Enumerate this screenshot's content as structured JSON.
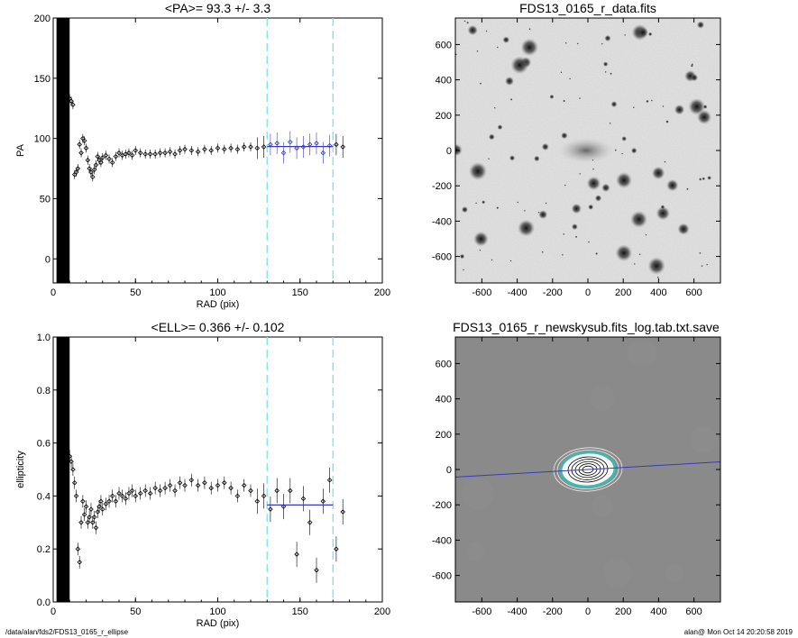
{
  "footer": {
    "path": "/data/alan/fds2/FDS13_0165_r_ellipse",
    "user_time": "alan@  Mon Oct 14 20:20:58 2019"
  },
  "colors": {
    "fit_line": "#3838c0",
    "cut_line": "#7fe0f0",
    "points": "#000000"
  },
  "chart_data": [
    {
      "type": "scatter",
      "title": "<PA>=  93.3 +/-   3.3",
      "xlabel": "RAD (pix)",
      "ylabel": "PA",
      "xlim": [
        0,
        200
      ],
      "ylim": [
        -20,
        200
      ],
      "xticks": [
        0,
        50,
        100,
        150,
        200
      ],
      "yticks": [
        0,
        50,
        100,
        150,
        200
      ],
      "vlines": [
        130,
        170
      ],
      "fit": {
        "x": [
          130,
          170
        ],
        "y": 93.3
      },
      "x": [
        10,
        11,
        12,
        13,
        14,
        15,
        16,
        17,
        18,
        19,
        20,
        21,
        22,
        23,
        24,
        25,
        26,
        27,
        28,
        29,
        30,
        32,
        34,
        36,
        38,
        40,
        42,
        44,
        46,
        48,
        50,
        53,
        56,
        59,
        62,
        65,
        68,
        71,
        74,
        77,
        80,
        84,
        88,
        92,
        96,
        100,
        104,
        108,
        112,
        116,
        120,
        124,
        128,
        132,
        136,
        140,
        144,
        148,
        152,
        156,
        160,
        164,
        168,
        172,
        176
      ],
      "values": [
        133,
        131,
        128,
        70,
        72,
        75,
        95,
        88,
        100,
        98,
        92,
        82,
        75,
        72,
        68,
        74,
        78,
        85,
        82,
        80,
        84,
        86,
        83,
        80,
        85,
        88,
        86,
        87,
        88,
        86,
        90,
        88,
        87,
        87,
        87,
        88,
        88,
        89,
        87,
        90,
        91,
        90,
        89,
        91,
        90,
        92,
        91,
        92,
        91,
        93,
        93,
        92,
        93,
        95,
        96,
        88,
        97,
        92,
        93,
        95,
        96,
        88,
        94,
        95,
        93
      ],
      "label_colors": "fit segment between vertical cut lines"
    },
    {
      "type": "scatter",
      "title": "<ELL>= 0.366 +/-  0.102",
      "xlabel": "RAD (pix)",
      "ylabel": "ellipticity",
      "xlim": [
        0,
        200
      ],
      "ylim": [
        0,
        1.0
      ],
      "xticks": [
        0,
        50,
        100,
        150,
        200
      ],
      "yticks": [
        0.0,
        0.2,
        0.4,
        0.6,
        0.8,
        1.0
      ],
      "vlines": [
        130,
        170
      ],
      "fit": {
        "x": [
          130,
          170
        ],
        "y": 0.366
      },
      "x": [
        10,
        11,
        12,
        13,
        14,
        15,
        16,
        17,
        18,
        19,
        20,
        21,
        22,
        23,
        24,
        25,
        26,
        27,
        28,
        29,
        30,
        32,
        34,
        36,
        38,
        40,
        42,
        44,
        46,
        48,
        50,
        53,
        56,
        59,
        62,
        65,
        68,
        71,
        74,
        77,
        80,
        84,
        88,
        92,
        96,
        100,
        104,
        108,
        112,
        116,
        120,
        124,
        128,
        132,
        136,
        140,
        144,
        148,
        152,
        156,
        160,
        164,
        168,
        172,
        176
      ],
      "values": [
        0.55,
        0.53,
        0.5,
        0.45,
        0.4,
        0.2,
        0.15,
        0.3,
        0.38,
        0.33,
        0.36,
        0.3,
        0.32,
        0.35,
        0.3,
        0.32,
        0.28,
        0.34,
        0.36,
        0.38,
        0.35,
        0.37,
        0.38,
        0.4,
        0.38,
        0.41,
        0.4,
        0.39,
        0.41,
        0.42,
        0.4,
        0.41,
        0.42,
        0.41,
        0.43,
        0.42,
        0.43,
        0.44,
        0.42,
        0.45,
        0.44,
        0.46,
        0.44,
        0.45,
        0.43,
        0.44,
        0.45,
        0.43,
        0.4,
        0.44,
        0.42,
        0.38,
        0.4,
        0.35,
        0.42,
        0.36,
        0.42,
        0.18,
        0.39,
        0.3,
        0.12,
        0.38,
        0.46,
        0.2,
        0.34
      ]
    },
    {
      "type": "heatmap",
      "title": "FDS13_0165_r_data.fits",
      "xlim": [
        -750,
        750
      ],
      "ylim": [
        -750,
        750
      ],
      "xticks": [
        -600,
        -400,
        -200,
        0,
        200,
        400,
        600
      ],
      "yticks": [
        -600,
        -400,
        -200,
        0,
        200,
        400,
        600
      ]
    },
    {
      "type": "heatmap",
      "title": "FDS13_0165_r_newskysub.fits_log.tab.txt.save",
      "xlim": [
        -750,
        750
      ],
      "ylim": [
        -750,
        750
      ],
      "xticks": [
        -600,
        -400,
        -200,
        0,
        200,
        400,
        600
      ],
      "yticks": [
        -600,
        -400,
        -200,
        0,
        200,
        400,
        600
      ],
      "major_axis_pa": 93.3,
      "ellipticity": 0.366
    }
  ]
}
